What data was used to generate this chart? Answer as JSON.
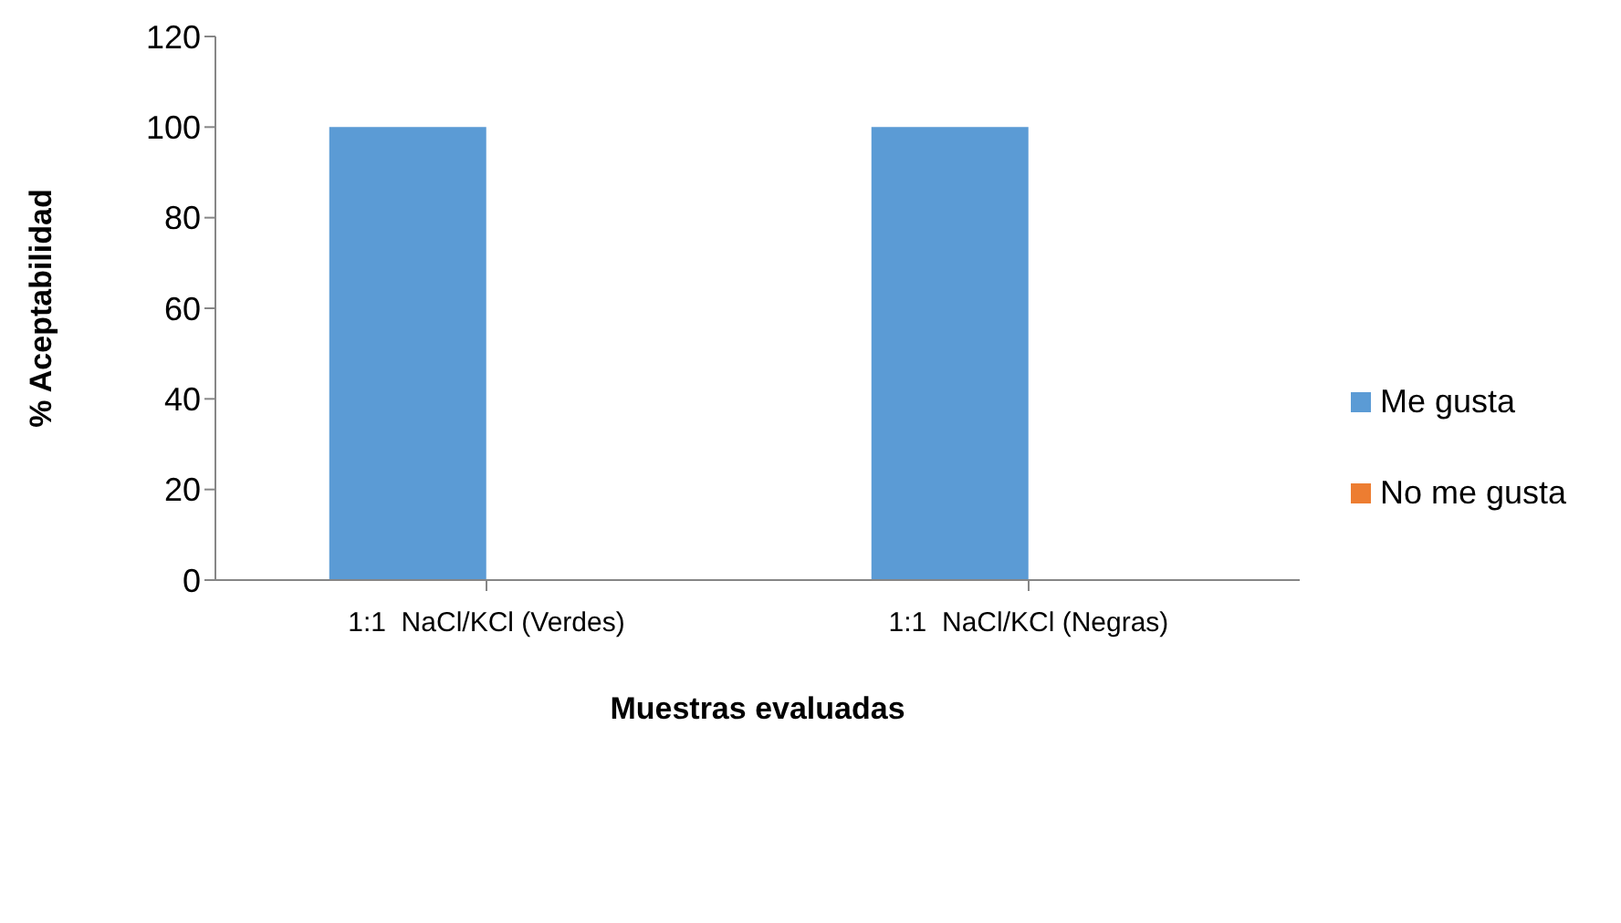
{
  "chart_data": {
    "type": "bar",
    "xlabel": "Muestras evaluadas",
    "ylabel": "% Aceptabilidad",
    "categories": [
      "1:1  NaCl/KCl (Verdes)",
      "1:1  NaCl/KCl (Negras)"
    ],
    "series": [
      {
        "name": "Me gusta",
        "color": "#5b9bd5",
        "values": [
          100,
          100
        ]
      },
      {
        "name": "No me gusta",
        "color": "#ed7d31",
        "values": [
          0,
          0
        ]
      }
    ],
    "ylim": [
      0,
      120
    ],
    "yticks": [
      0,
      20,
      40,
      60,
      80,
      100,
      120
    ],
    "grid": false,
    "legend": "right"
  }
}
